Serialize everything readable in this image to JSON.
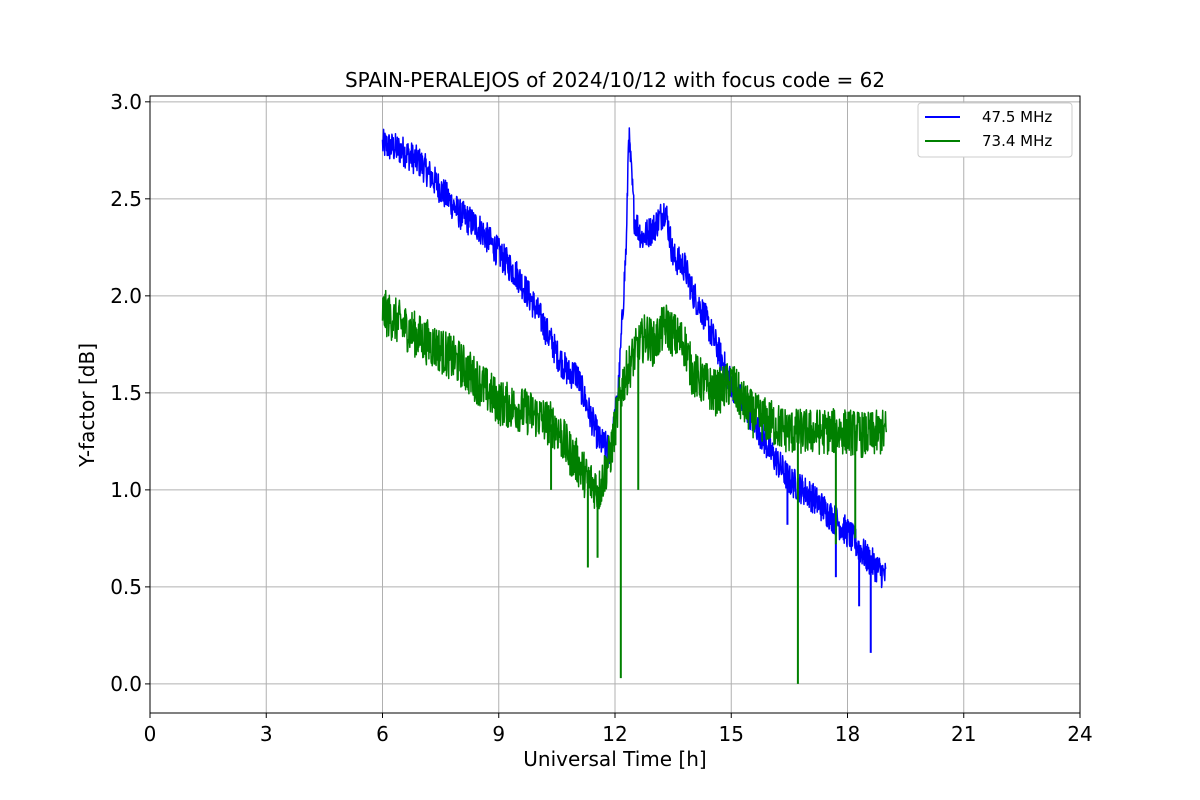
{
  "chart_data": {
    "type": "line",
    "title": "SPAIN-PERALEJOS of 2024/10/12 with focus code = 62",
    "xlabel": "Universal Time [h]",
    "ylabel": "Y-factor [dB]",
    "xlim": [
      0,
      24
    ],
    "ylim": [
      -0.15,
      3.03
    ],
    "xticks": [
      0,
      3,
      6,
      9,
      12,
      15,
      18,
      21,
      24
    ],
    "xtick_labels": [
      "0",
      "3",
      "6",
      "9",
      "12",
      "15",
      "18",
      "21",
      "24"
    ],
    "yticks": [
      0.0,
      0.5,
      1.0,
      1.5,
      2.0,
      2.5,
      3.0
    ],
    "ytick_labels": [
      "0.0",
      "0.5",
      "1.0",
      "1.5",
      "2.0",
      "2.5",
      "3.0"
    ],
    "grid": true,
    "legend_position": "top-right",
    "series": [
      {
        "name": "47.5 MHz",
        "color": "#0000ff",
        "noise": 0.04,
        "x": [
          6.0,
          6.5,
          7.0,
          7.5,
          8.0,
          8.5,
          9.0,
          9.5,
          10.0,
          10.5,
          10.8,
          11.0,
          11.3,
          11.6,
          11.9,
          12.1,
          12.3,
          12.35,
          12.5,
          12.7,
          13.0,
          13.3,
          13.5,
          13.8,
          14.0,
          14.3,
          14.6,
          15.0,
          15.3,
          15.6,
          16.0,
          16.5,
          17.0,
          17.5,
          18.0,
          18.5,
          19.0
        ],
        "y": [
          2.78,
          2.75,
          2.68,
          2.55,
          2.42,
          2.35,
          2.22,
          2.1,
          1.92,
          1.7,
          1.6,
          1.6,
          1.42,
          1.25,
          1.2,
          1.55,
          2.3,
          2.85,
          2.4,
          2.3,
          2.35,
          2.45,
          2.2,
          2.15,
          2.02,
          1.9,
          1.75,
          1.55,
          1.45,
          1.35,
          1.2,
          1.05,
          0.98,
          0.88,
          0.78,
          0.65,
          0.55
        ]
      },
      {
        "name": "73.4 MHz",
        "color": "#008000",
        "noise": 0.06,
        "x": [
          6.0,
          6.5,
          7.0,
          7.5,
          8.0,
          8.5,
          9.0,
          9.5,
          10.0,
          10.5,
          10.8,
          11.0,
          11.3,
          11.6,
          11.9,
          12.1,
          12.2,
          12.5,
          12.8,
          13.0,
          13.3,
          13.5,
          13.8,
          14.0,
          14.3,
          14.6,
          15.0,
          15.3,
          15.6,
          16.0,
          16.5,
          17.0,
          17.5,
          18.0,
          18.5,
          19.0
        ],
        "y": [
          1.92,
          1.85,
          1.78,
          1.72,
          1.65,
          1.55,
          1.45,
          1.42,
          1.38,
          1.32,
          1.2,
          1.15,
          1.05,
          1.0,
          1.2,
          1.45,
          1.55,
          1.7,
          1.8,
          1.75,
          1.85,
          1.8,
          1.75,
          1.6,
          1.55,
          1.5,
          1.55,
          1.45,
          1.38,
          1.35,
          1.3,
          1.3,
          1.3,
          1.3,
          1.28,
          1.3
        ]
      }
    ],
    "dips": [
      {
        "series": 1,
        "x": 12.15,
        "y": 0.03
      },
      {
        "series": 1,
        "x": 16.72,
        "y": 0.0
      },
      {
        "series": 1,
        "x": 10.35,
        "y": 1.0
      },
      {
        "series": 1,
        "x": 11.3,
        "y": 0.6
      },
      {
        "series": 1,
        "x": 11.55,
        "y": 0.65
      },
      {
        "series": 1,
        "x": 12.6,
        "y": 1.0
      },
      {
        "series": 1,
        "x": 17.7,
        "y": 0.72
      },
      {
        "series": 1,
        "x": 18.2,
        "y": 0.75
      },
      {
        "series": 0,
        "x": 18.6,
        "y": 0.16
      },
      {
        "series": 0,
        "x": 18.3,
        "y": 0.4
      },
      {
        "series": 0,
        "x": 16.45,
        "y": 0.82
      },
      {
        "series": 0,
        "x": 17.7,
        "y": 0.55
      }
    ]
  }
}
